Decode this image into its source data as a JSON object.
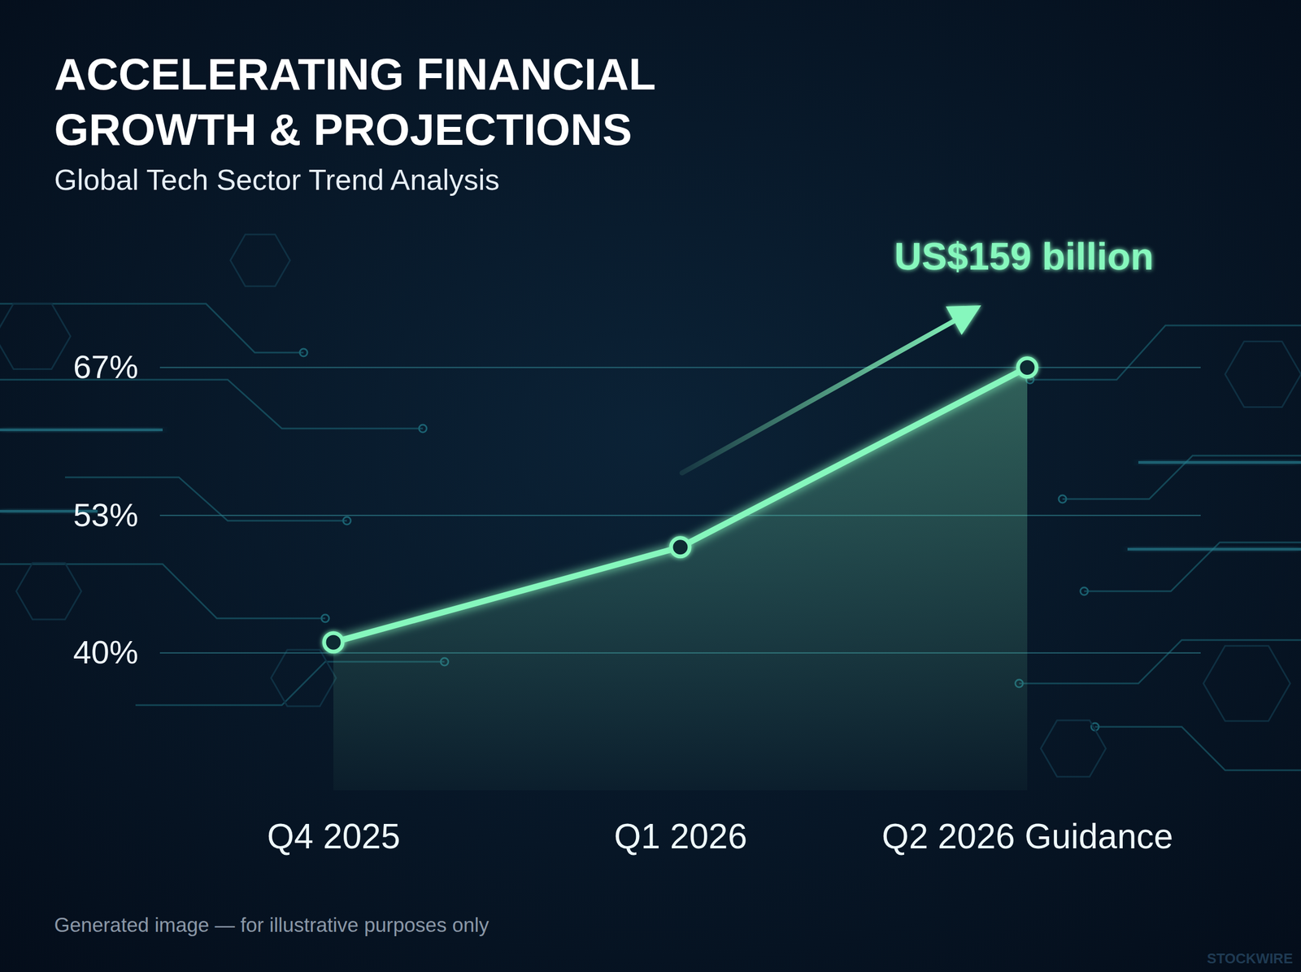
{
  "chart_data": {
    "type": "line",
    "title": "ACCELERATING FINANCIAL GROWTH & PROJECTIONS",
    "subtitle": "Global Tech Sector Trend Analysis",
    "categories": [
      "Q4 2025",
      "Q1 2026",
      "Q2 2026 Guidance"
    ],
    "values": [
      41,
      50,
      67
    ],
    "color": "#86f7bd",
    "marker": "circle",
    "ylim": [
      27,
      76
    ],
    "yticks": [
      {
        "value": 40,
        "label": "40%"
      },
      {
        "value": 53,
        "label": "53%"
      },
      {
        "value": 67,
        "label": "67%"
      }
    ],
    "grid": true,
    "annotations": [
      "US$159 billion"
    ],
    "footnote": "Generated image — for illustrative purposes only",
    "watermark": "STOCKWIRE"
  }
}
